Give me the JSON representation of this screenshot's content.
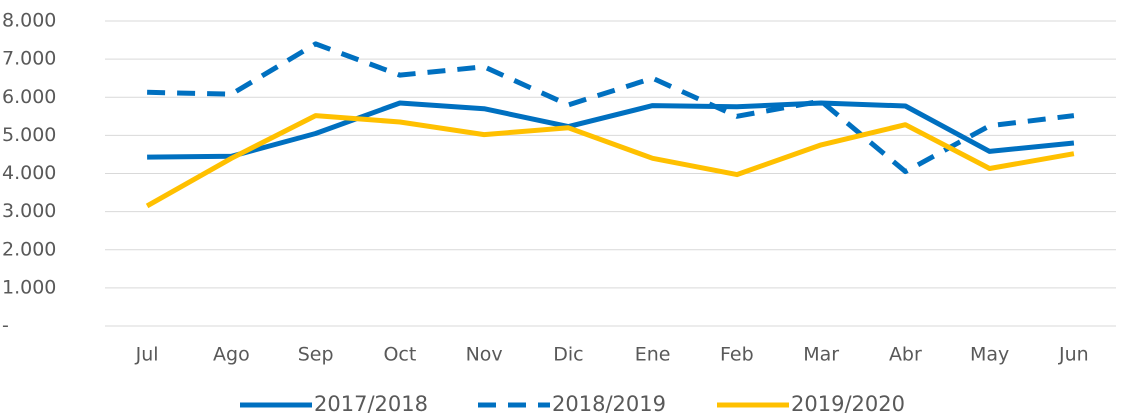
{
  "chart_data": {
    "type": "line",
    "categories": [
      "Jul",
      "Ago",
      "Sep",
      "Oct",
      "Nov",
      "Dic",
      "Ene",
      "Feb",
      "Mar",
      "Abr",
      "May",
      "Jun"
    ],
    "series": [
      {
        "name": "2017/2018",
        "color": "#0070c0",
        "dashed": false,
        "values": [
          4430,
          4450,
          5050,
          5850,
          5700,
          5230,
          5780,
          5750,
          5850,
          5770,
          4580,
          4800
        ]
      },
      {
        "name": "2018/2019",
        "color": "#0070c0",
        "dashed": true,
        "values": [
          6130,
          6080,
          7400,
          6580,
          6800,
          5800,
          6500,
          5500,
          5900,
          4050,
          5250,
          5520
        ]
      },
      {
        "name": "2019/2020",
        "color": "#ffc000",
        "dashed": false,
        "values": [
          3150,
          4400,
          5520,
          5350,
          5020,
          5200,
          4400,
          3970,
          4750,
          5280,
          4130,
          4520
        ]
      }
    ],
    "ylim": [
      0,
      8000
    ],
    "yticks": [
      {
        "value": 0,
        "label": "-"
      },
      {
        "value": 1000,
        "label": "1.000"
      },
      {
        "value": 2000,
        "label": "2.000"
      },
      {
        "value": 3000,
        "label": "3.000"
      },
      {
        "value": 4000,
        "label": "4.000"
      },
      {
        "value": 5000,
        "label": "5.000"
      },
      {
        "value": 6000,
        "label": "6.000"
      },
      {
        "value": 7000,
        "label": "7.000"
      },
      {
        "value": 8000,
        "label": "8.000"
      }
    ],
    "grid": true,
    "legend": "bottom"
  }
}
